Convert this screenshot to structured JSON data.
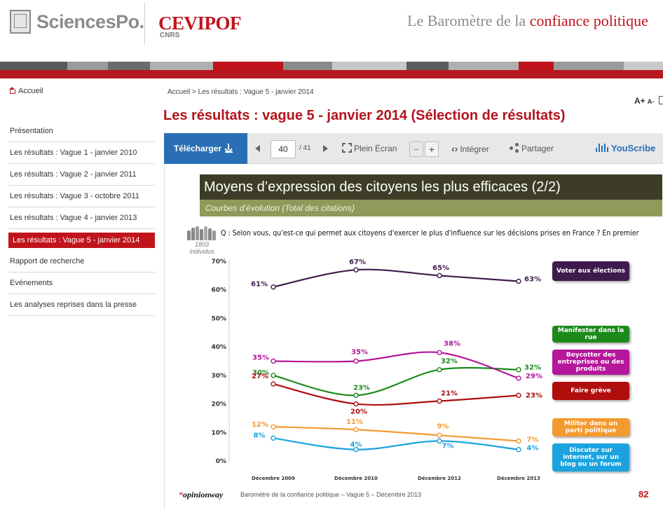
{
  "header": {
    "sciencespo": "SciencesPo.",
    "cevipof": "CEVIPOF",
    "cnrs": "CNRS",
    "barometer_prefix": "Le Baromètre de la ",
    "barometer_highlight": "confiance politique"
  },
  "sidebar": {
    "home": "Accueil",
    "items": [
      {
        "label": "Présentation"
      },
      {
        "label": "Les résultats : Vague 1 - janvier 2010"
      },
      {
        "label": "Les résultats : Vague 2 - janvier 2011"
      },
      {
        "label": "Les résultats : Vague 3 - octobre 2011"
      },
      {
        "label": "Les résultats : Vague 4 - janvier 2013"
      },
      {
        "label": "Les résultats : Vague 5 - janvier 2014",
        "active": true
      },
      {
        "label": "Rapport de recherche"
      },
      {
        "label": "Evénements"
      },
      {
        "label": "Les analyses reprises dans la presse"
      }
    ]
  },
  "content": {
    "breadcrumb": "Accueil > Les résultats : Vague 5 - janvier 2014",
    "text_size_big": "A+",
    "text_size_small": "A-",
    "title": "Les résultats : vague 5 - janvier 2014 (Sélection de résultats)"
  },
  "toolbar": {
    "download": "Télécharger",
    "page_value": "40",
    "page_total": "/ 41",
    "fullscreen": "Plein Écran",
    "zoom_out": "−",
    "zoom_in": "+",
    "embed": "Intégrer",
    "share": "Partager",
    "youscribe": "YouScribe"
  },
  "slide": {
    "title": "Moyens d’expression des citoyens les plus efficaces (2/2)",
    "subtitle": "Courbes d’évolution (Total des citations)",
    "sample_count": "1803",
    "sample_unit": "individus",
    "question": "Q : Selon vous, qu'est-ce qui permet aux citoyens d'exercer le plus d'influence sur les décisions prises en France ?  En premier",
    "footer_brand": "opinionway",
    "footer_text": "Baromètre de la confiance politique – Vague 5 – Décembre 2013",
    "page_number": "82"
  },
  "chart_data": {
    "type": "line",
    "categories": [
      "Décembre 2009",
      "Décembre 2010",
      "Décembre 2012",
      "Décembre 2013"
    ],
    "y_ticks": [
      "70%",
      "60%",
      "50%",
      "40%",
      "30%",
      "20%",
      "10%",
      "0%"
    ],
    "ylim": [
      0,
      70
    ],
    "legend_placement": "right",
    "series": [
      {
        "name": "Voter aux élections",
        "values": [
          61,
          67,
          65,
          63
        ],
        "color": "#3f1a4d"
      },
      {
        "name": "Manifester dans la rue",
        "values": [
          30,
          23,
          32,
          32
        ],
        "color": "#1b8a1b"
      },
      {
        "name": "Boycotter des entreprises ou des produits",
        "values": [
          35,
          35,
          38,
          29
        ],
        "color": "#b5169a"
      },
      {
        "name": "Faire grève",
        "values": [
          27,
          20,
          21,
          23
        ],
        "color": "#b00d0d"
      },
      {
        "name": "Militer dans un parti politique",
        "values": [
          12,
          11,
          9,
          7
        ],
        "color": "#f39a2e"
      },
      {
        "name": "Discuter sur internet, sur un blog ou un forum",
        "values": [
          8,
          4,
          7,
          4
        ],
        "color": "#1aa3df"
      }
    ],
    "data_labels": [
      [
        "61%",
        "67%",
        "65%",
        "63%"
      ],
      [
        "30%",
        "23%",
        "32%",
        "32%"
      ],
      [
        "35%",
        "35%",
        "38%",
        "29%"
      ],
      [
        "27%",
        "20%",
        "21%",
        "23%"
      ],
      [
        "12%",
        "11%",
        "9%",
        "7%"
      ],
      [
        "8%",
        "4%",
        "7%",
        "4%"
      ]
    ]
  }
}
